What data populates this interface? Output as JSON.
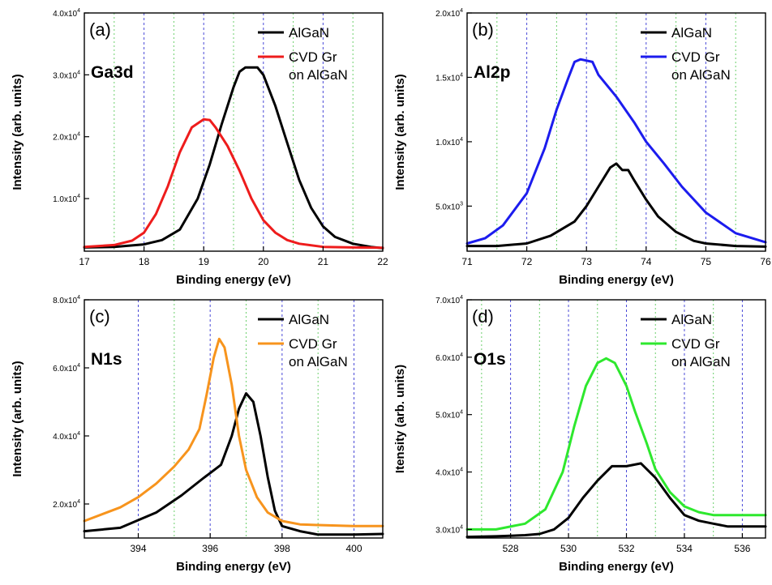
{
  "chart_data": [
    {
      "type": "line",
      "panel_label": "(a)",
      "peak_label": "Ga3d",
      "xlabel": "Binding energy (eV)",
      "ylabel": "Intensity (arb. units)",
      "xlim": [
        17,
        22
      ],
      "ylim": [
        1500,
        40000
      ],
      "xticks": [
        17,
        18,
        19,
        20,
        21,
        22
      ],
      "yticks": [
        {
          "v": 10000,
          "m": "1.0x10",
          "e": "4"
        },
        {
          "v": 20000,
          "m": "2.0x10",
          "e": "4"
        },
        {
          "v": 30000,
          "m": "3.0x10",
          "e": "4"
        },
        {
          "v": 40000,
          "m": "4.0x10",
          "e": "4"
        }
      ],
      "grid_blue": [
        18,
        19,
        20,
        21
      ],
      "grid_green": [
        17.5,
        18.5,
        19.5,
        20.5,
        21.5
      ],
      "legend": [
        "AlGaN",
        "CVD Gr",
        "on AlGaN"
      ],
      "series": [
        {
          "name": "AlGaN",
          "color": "#000000",
          "x": [
            17,
            17.5,
            18,
            18.3,
            18.6,
            18.9,
            19.1,
            19.3,
            19.5,
            19.6,
            19.7,
            19.9,
            20.0,
            20.2,
            20.4,
            20.6,
            20.8,
            21.0,
            21.2,
            21.5,
            21.8,
            22
          ],
          "y": [
            2100,
            2200,
            2600,
            3300,
            5000,
            10000,
            15500,
            22000,
            28000,
            30500,
            31200,
            31200,
            30000,
            25000,
            19000,
            13000,
            8500,
            5500,
            3800,
            2700,
            2200,
            2000
          ]
        },
        {
          "name": "CVD Gr on AlGaN",
          "color": "#ee1c1c",
          "x": [
            17,
            17.5,
            17.8,
            18.0,
            18.2,
            18.4,
            18.6,
            18.8,
            19.0,
            19.1,
            19.2,
            19.4,
            19.6,
            19.8,
            20.0,
            20.2,
            20.4,
            20.6,
            21.0,
            21.5,
            22
          ],
          "y": [
            2200,
            2500,
            3200,
            4500,
            7500,
            12000,
            17500,
            21500,
            22800,
            22700,
            21500,
            18500,
            14500,
            10000,
            6500,
            4500,
            3300,
            2700,
            2200,
            2100,
            2050
          ]
        }
      ]
    },
    {
      "type": "line",
      "panel_label": "(b)",
      "peak_label": "Al2p",
      "xlabel": "Binding energy (eV)",
      "ylabel": "Intensity (arb. units)",
      "xlim": [
        71,
        76
      ],
      "ylim": [
        1500,
        20000
      ],
      "xticks": [
        71,
        72,
        73,
        74,
        75,
        76
      ],
      "yticks": [
        {
          "v": 5000,
          "m": "5.0x10",
          "e": "3"
        },
        {
          "v": 10000,
          "m": "1.0x10",
          "e": "4"
        },
        {
          "v": 15000,
          "m": "1.5x10",
          "e": "4"
        },
        {
          "v": 20000,
          "m": "2.0x10",
          "e": "4"
        }
      ],
      "grid_blue": [
        72,
        73,
        74,
        75
      ],
      "grid_green": [
        71.5,
        72.5,
        73.5,
        74.5,
        75.5
      ],
      "legend": [
        "AlGaN",
        "CVD Gr",
        "on AlGaN"
      ],
      "series": [
        {
          "name": "AlGaN",
          "color": "#000000",
          "x": [
            71,
            71.5,
            72,
            72.4,
            72.8,
            73.0,
            73.2,
            73.4,
            73.5,
            73.6,
            73.7,
            73.8,
            74.0,
            74.2,
            74.5,
            74.8,
            75,
            75.5,
            76
          ],
          "y": [
            1900,
            1900,
            2100,
            2700,
            3800,
            5000,
            6500,
            8000,
            8300,
            7800,
            7800,
            7000,
            5500,
            4200,
            3000,
            2300,
            2100,
            1900,
            1850
          ]
        },
        {
          "name": "CVD Gr on AlGaN",
          "color": "#1c1cee",
          "x": [
            71,
            71.3,
            71.6,
            72.0,
            72.3,
            72.5,
            72.7,
            72.8,
            72.9,
            73.1,
            73.2,
            73.5,
            73.8,
            74.0,
            74.3,
            74.6,
            75.0,
            75.5,
            76
          ],
          "y": [
            2100,
            2500,
            3500,
            6000,
            9500,
            12500,
            15000,
            16200,
            16400,
            16200,
            15200,
            13500,
            11500,
            10000,
            8300,
            6500,
            4500,
            2900,
            2200
          ]
        }
      ]
    },
    {
      "type": "line",
      "panel_label": "(c)",
      "peak_label": "N1s",
      "xlabel": "Binding energy (eV)",
      "ylabel": "Intensity (arb. units)",
      "xlim": [
        392.5,
        400.8
      ],
      "ylim": [
        10000,
        80000
      ],
      "xticks": [
        394,
        396,
        398,
        400
      ],
      "yticks": [
        {
          "v": 20000,
          "m": "2.0x10",
          "e": "4"
        },
        {
          "v": 40000,
          "m": "4.0x10",
          "e": "4"
        },
        {
          "v": 60000,
          "m": "6.0x10",
          "e": "4"
        },
        {
          "v": 80000,
          "m": "8.0x10",
          "e": "4"
        }
      ],
      "grid_blue": [
        394,
        396,
        398,
        400
      ],
      "grid_green": [
        395,
        397,
        399
      ],
      "legend": [
        "AlGaN",
        "CVD Gr",
        "on AlGaN"
      ],
      "series": [
        {
          "name": "AlGaN",
          "color": "#000000",
          "x": [
            392.5,
            393.5,
            394.5,
            395.2,
            395.8,
            396.3,
            396.6,
            396.8,
            397.0,
            397.2,
            397.4,
            397.6,
            397.8,
            398.0,
            398.5,
            399.0,
            400.0,
            400.8
          ],
          "y": [
            12000,
            13000,
            17500,
            22500,
            27500,
            31500,
            40000,
            48000,
            52500,
            50000,
            40000,
            28000,
            18000,
            13500,
            12000,
            11000,
            11000,
            11200
          ]
        },
        {
          "name": "CVD Gr on AlGaN",
          "color": "#f7941d",
          "x": [
            392.5,
            393.5,
            394.0,
            394.5,
            395.0,
            395.4,
            395.7,
            395.9,
            396.1,
            396.25,
            396.4,
            396.6,
            396.8,
            397.0,
            397.3,
            397.6,
            398.0,
            398.5,
            399.0,
            400.0,
            400.8
          ],
          "y": [
            15000,
            19000,
            22000,
            26000,
            31000,
            36000,
            42000,
            52000,
            63000,
            68500,
            66000,
            55000,
            40000,
            30000,
            22000,
            17500,
            15000,
            14000,
            13800,
            13500,
            13500
          ]
        }
      ]
    },
    {
      "type": "line",
      "panel_label": "(d)",
      "peak_label": "O1s",
      "xlabel": "Binding energy (eV)",
      "ylabel": "Itensity (arb. units)",
      "xlim": [
        526.5,
        536.8
      ],
      "ylim": [
        28500,
        70000
      ],
      "xticks": [
        528,
        530,
        532,
        534,
        536
      ],
      "yticks": [
        {
          "v": 30000,
          "m": "3.0x10",
          "e": "4"
        },
        {
          "v": 40000,
          "m": "4.0x10",
          "e": "4"
        },
        {
          "v": 50000,
          "m": "5.0x10",
          "e": "4"
        },
        {
          "v": 60000,
          "m": "6.0x10",
          "e": "4"
        },
        {
          "v": 70000,
          "m": "7.0x10",
          "e": "4"
        }
      ],
      "grid_blue": [
        528,
        530,
        532,
        534,
        536
      ],
      "grid_green": [
        527,
        529,
        531,
        533,
        535
      ],
      "legend": [
        "AlGaN",
        "CVD Gr",
        "on AlGaN"
      ],
      "series": [
        {
          "name": "AlGaN",
          "color": "#000000",
          "x": [
            526.5,
            527.5,
            528.5,
            529.0,
            529.5,
            530.0,
            530.5,
            531.0,
            531.5,
            532.0,
            532.5,
            533.0,
            533.5,
            534.0,
            534.5,
            535.0,
            535.5,
            536.0,
            536.8
          ],
          "y": [
            28700,
            28800,
            29000,
            29200,
            30000,
            32000,
            35500,
            38500,
            41000,
            41000,
            41500,
            39000,
            35500,
            32500,
            31500,
            31000,
            30500,
            30500,
            30500
          ]
        },
        {
          "name": "CVD Gr on AlGaN",
          "color": "#2ee82e",
          "x": [
            526.5,
            527.5,
            528.5,
            529.2,
            529.8,
            530.2,
            530.6,
            531.0,
            531.3,
            531.6,
            532.0,
            532.3,
            532.7,
            533.0,
            533.5,
            534.0,
            534.5,
            535.0,
            535.5,
            536.0,
            536.8
          ],
          "y": [
            30000,
            30000,
            31000,
            33500,
            40000,
            48000,
            55000,
            59000,
            59800,
            59000,
            55000,
            50500,
            45000,
            40500,
            36500,
            34000,
            33000,
            32500,
            32500,
            32500,
            32500
          ]
        }
      ]
    }
  ]
}
